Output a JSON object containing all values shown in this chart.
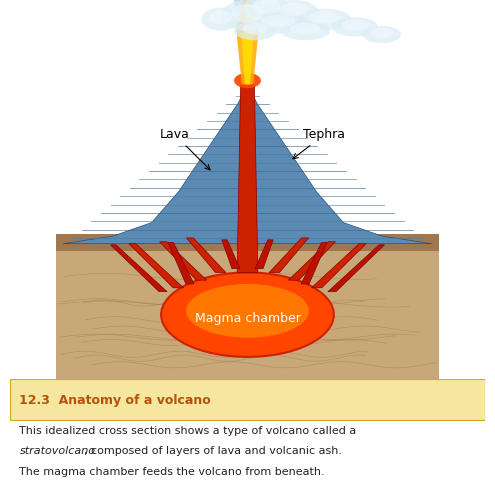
{
  "title": "12.3  Anatomy of a volcano",
  "title_color": "#b8520a",
  "title_bg": "#f5e6b0",
  "caption_line1": "This idealized cross section shows a type of volcano called a",
  "caption_line2_italic": "stratovolcano",
  "caption_line2_rest": ", composed of layers of lava and volcanic ash.",
  "caption_line3": "The magma chamber feeds the volcano from beneath.",
  "label_lava": "Lava",
  "label_tephra": "Tephra",
  "label_magma": "Magma chamber",
  "bg_color": "#ffffff",
  "sky_color": "#ffffff",
  "volcano_base_color": "#5b8ab5",
  "volcano_stripe_color": "#3a6a8a",
  "ground_color": "#c8a878",
  "ground_dark": "#a07850",
  "magma_color": "#ff4500",
  "magma_glow": "#ff8c00",
  "lava_channel_color": "#cc2200",
  "eruption_fire_color": "#ff6600",
  "eruption_yellow": "#ffcc00",
  "smoke_color": "#d0e8f0",
  "font_size_title": 9,
  "font_size_caption": 8,
  "font_size_label": 9
}
